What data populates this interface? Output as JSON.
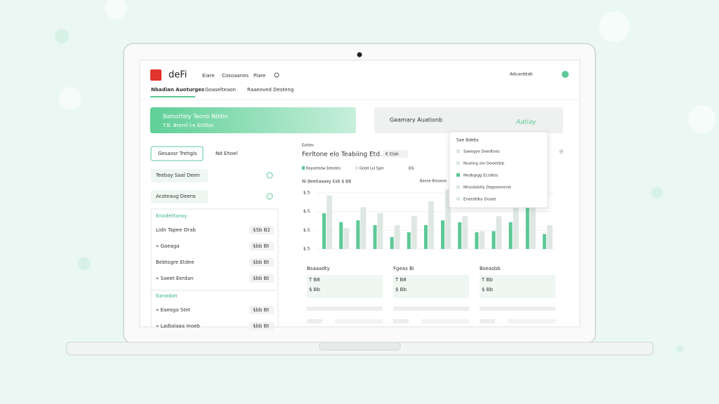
{
  "header": {
    "logo": "deFi",
    "nav": [
      "Eiare",
      "Cosoaanes",
      "Piare"
    ],
    "account": "Aduanbtab"
  },
  "tabs": [
    "Nbadian Auoturges",
    "Goaselteaon",
    "Raaeoved Desteng"
  ],
  "banner": {
    "title": "Batostfaly Teonb Nbitin",
    "subtitle": "T.B. Btentl l:e Etillbis"
  },
  "summary": {
    "title": "Geamary Auationb",
    "badge": "Aatiay"
  },
  "sidebar": {
    "buttons": [
      "Gesaosr Trehgls",
      "Nd Ehoel"
    ],
    "links": [
      "Teebay Saal Deen",
      "Acsteaug Deens"
    ],
    "groups": [
      {
        "title": "Enodelitoray",
        "items": [
          {
            "label": "Lidn Tapee Orab",
            "value": "$Sb B2"
          },
          {
            "label": "» Gaeaga",
            "value": "$bb Bt"
          },
          {
            "label": "Bebtogre Etdee",
            "value": "$bb Bt"
          },
          {
            "label": "» Saeet Eerdan",
            "value": "$bb Bt"
          }
        ]
      },
      {
        "title": "Eanodan",
        "items": [
          {
            "label": "» Eaeoga Stet",
            "value": "$bb Bt"
          },
          {
            "label": "» Ladtalaaa Inoeb",
            "value": "$bb Bt"
          }
        ]
      }
    ]
  },
  "chart": {
    "type": "bar",
    "section": "Eatdes",
    "title": "Ferltone elo Teabiing Etd.",
    "filter": "K Elab",
    "subtitle": "Ni Beetiaaaey Esb $ B8",
    "note": "Baeoe Btaaeoe",
    "legend_extra": "Elb",
    "ylabels": [
      "$.5",
      "$.5",
      "$.5",
      "$.5"
    ],
    "ylim": [
      0,
      100
    ],
    "series": [
      {
        "name": "Nspsetedw Eetedes",
        "color": "#5cc896",
        "values": [
          60,
          45,
          48,
          40,
          20,
          28,
          40,
          48,
          45,
          28,
          30,
          45,
          70,
          25
        ]
      },
      {
        "name": "Gedd Lol Sgie",
        "color": "#dfe7e3",
        "values": [
          90,
          35,
          70,
          60,
          40,
          55,
          80,
          100,
          55,
          30,
          55,
          75,
          85,
          40
        ]
      }
    ]
  },
  "menu": {
    "title": "Sae Bdebs",
    "items": [
      "Saeegye Doedtoes",
      "Nueiing sto Doeetlbb",
      "Nedbgigg Ecsdtes",
      "Nhosdsbity Degeeenend",
      "Eneedtiby Dosee"
    ]
  },
  "cards": [
    {
      "title": "Bsaaadty",
      "value": "T B8",
      "sub": "$ Bb"
    },
    {
      "title": "Fgeas Bi",
      "value": "T B8",
      "sub": "$ Bb"
    },
    {
      "title": "Bseasbb",
      "value": "T Bb",
      "sub": "$ Bb"
    }
  ]
}
